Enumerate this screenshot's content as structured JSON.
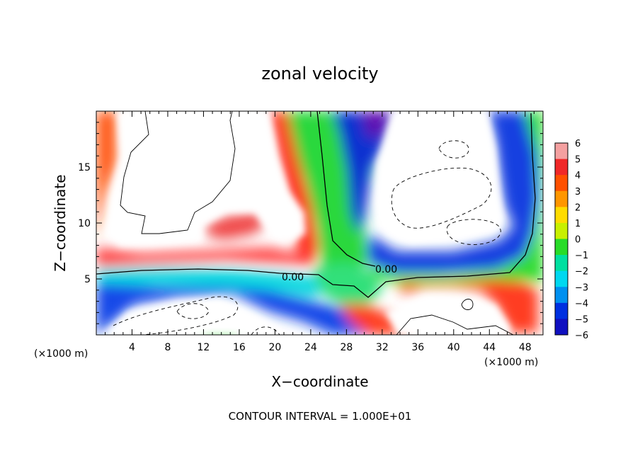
{
  "chart_data": {
    "type": "heatmap",
    "title": "zonal velocity",
    "xlabel": "X−coordinate",
    "ylabel": "Z−coordinate",
    "x_unit_label": "(×1000 m)",
    "x_unit_label_right": "(×1000 m)",
    "xlim": [
      0,
      50
    ],
    "ylim": [
      0,
      20
    ],
    "x_ticks": [
      4,
      8,
      12,
      16,
      20,
      24,
      28,
      32,
      36,
      40,
      44,
      48
    ],
    "x_tick_labels": [
      "4",
      "8",
      "12",
      "16",
      "20",
      "24",
      "28",
      "32",
      "36",
      "40",
      "44",
      "48"
    ],
    "y_ticks": [
      5,
      10,
      15
    ],
    "y_tick_labels": [
      "5",
      "10",
      "15"
    ],
    "contour_labels": [
      "0.00",
      "0.00"
    ],
    "footnote": "CONTOUR INTERVAL = 1.000E+01",
    "colorbar": {
      "levels": [
        6,
        5,
        4,
        3,
        2,
        1,
        0,
        -1,
        -2,
        -3,
        -4,
        -5,
        -6
      ],
      "labels": [
        "6",
        "5",
        "4",
        "3",
        "2",
        "1",
        "0",
        "−1",
        "−2",
        "−3",
        "−4",
        "−5",
        "−6"
      ],
      "colors": [
        "#f4a0a0",
        "#f02828",
        "#ff5000",
        "#ff9600",
        "#ffdc00",
        "#c8f000",
        "#28dc28",
        "#00e0a0",
        "#00d8f0",
        "#0090f0",
        "#0030e0",
        "#1010c0",
        "#7010b0"
      ]
    },
    "grid": false
  }
}
